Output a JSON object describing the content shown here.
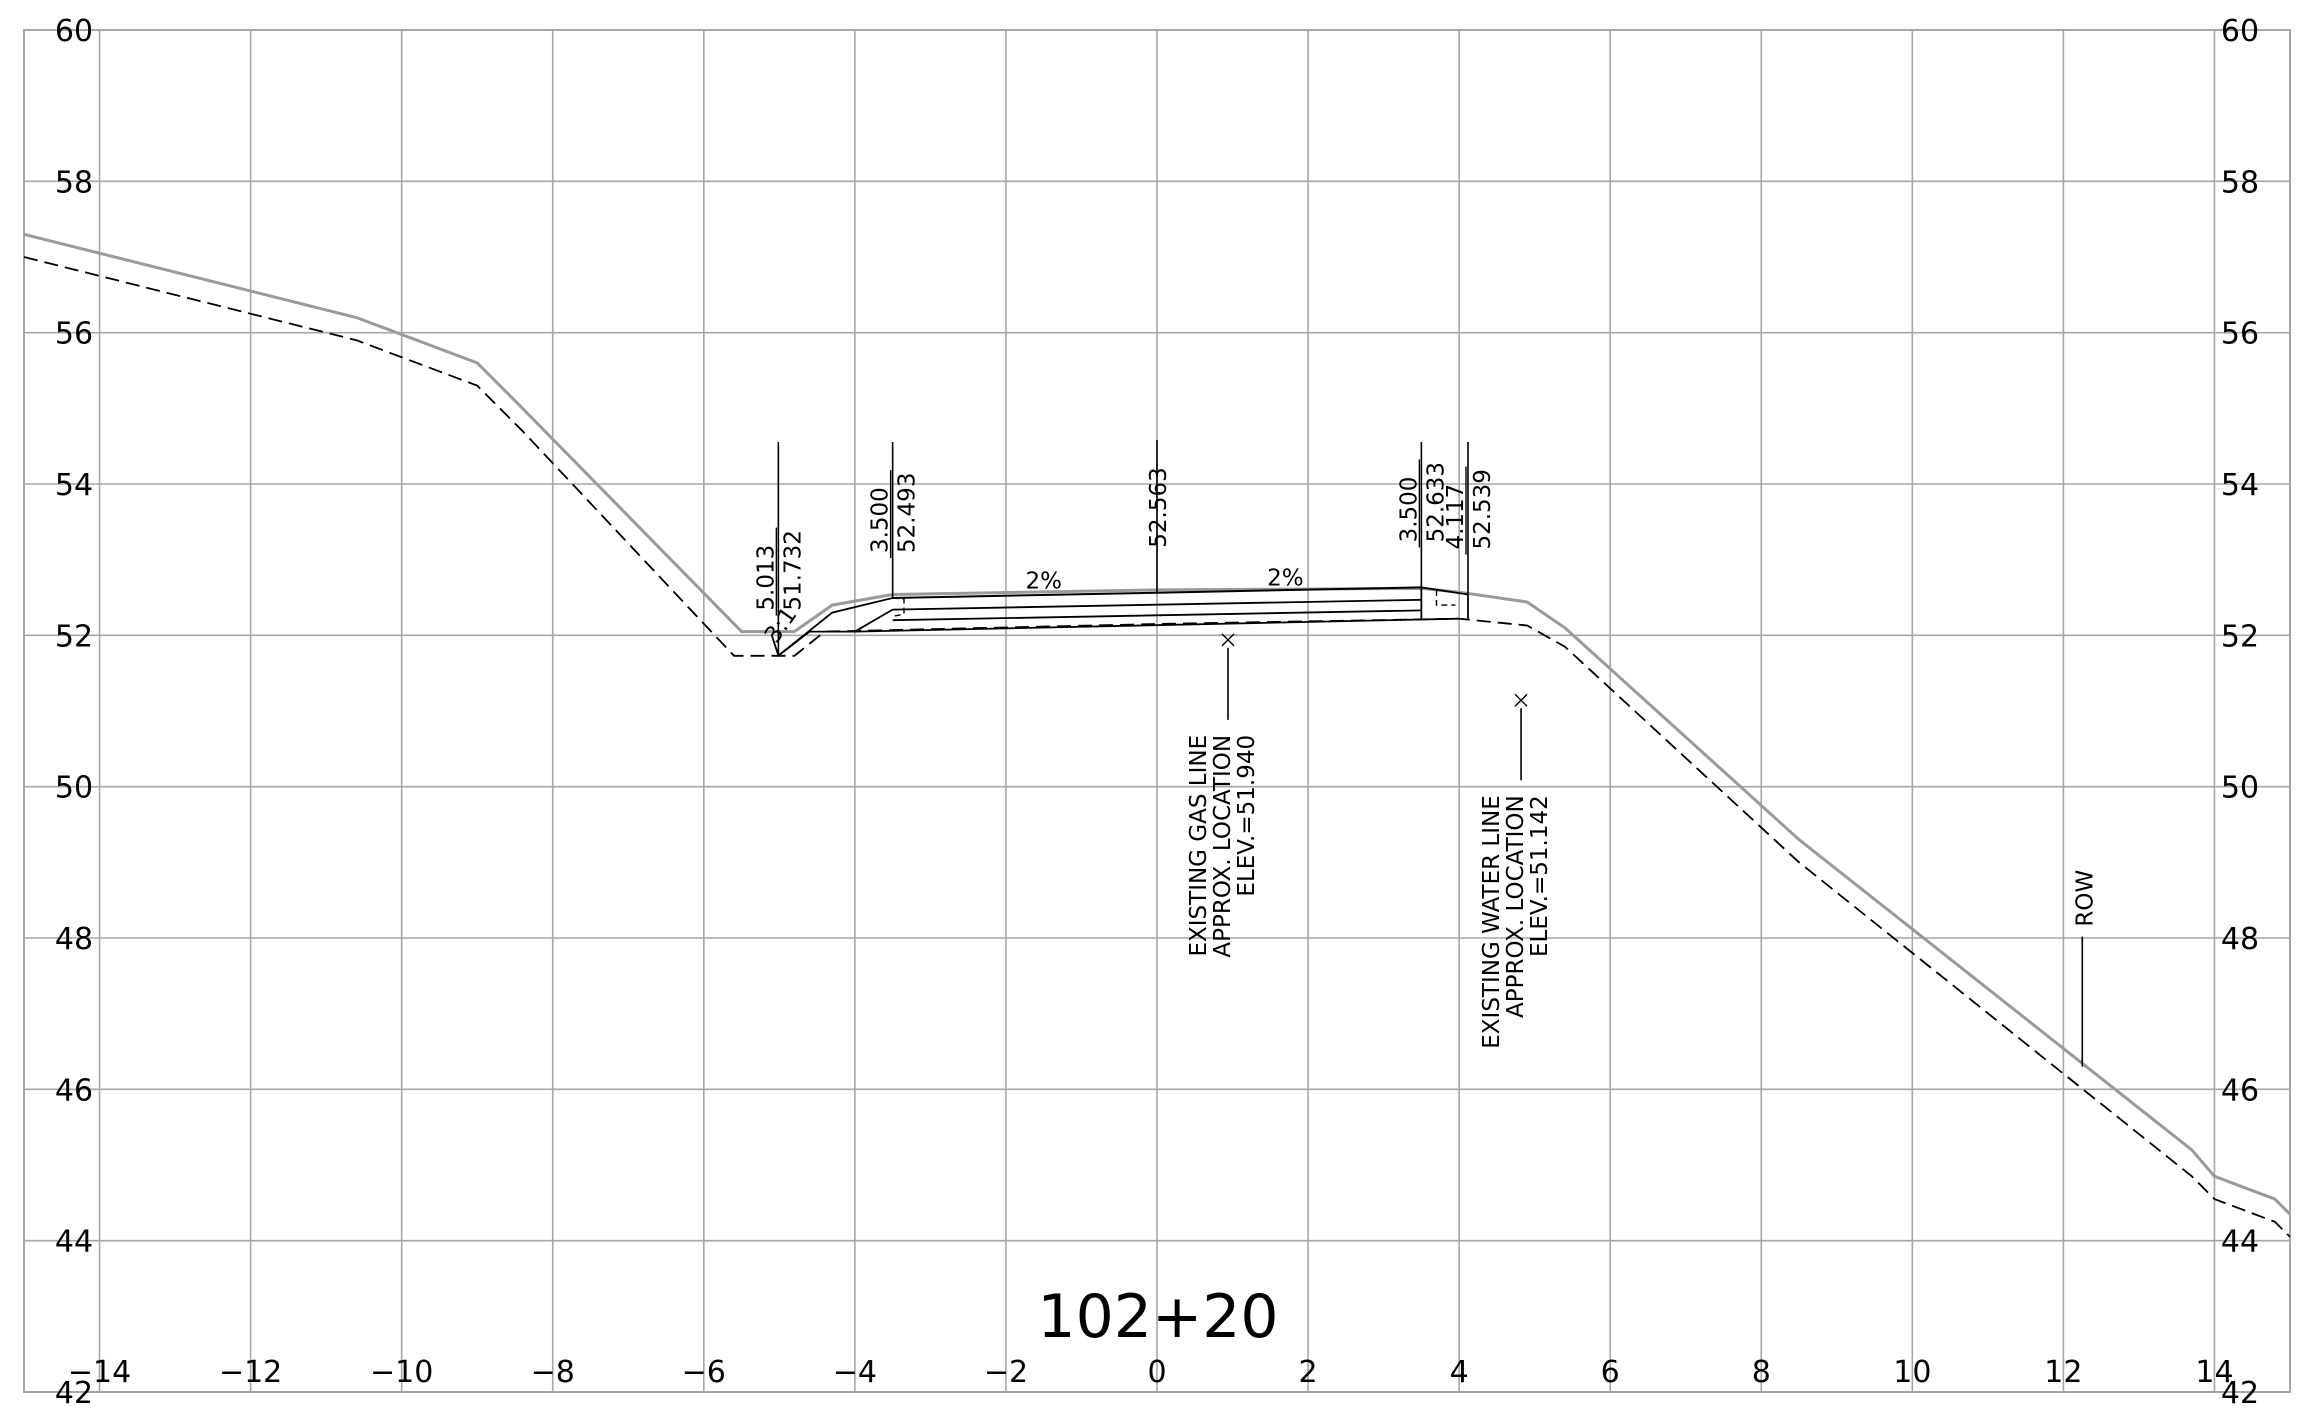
{
  "drawing": {
    "station": "102+20",
    "ground_color": "#9a9a9a",
    "grid_color": "#a6a6a6",
    "ink_color": "#000000"
  },
  "chart_data": {
    "type": "line",
    "xlim": [
      -15,
      15
    ],
    "ylim": [
      42,
      60
    ],
    "x_ticks": [
      -14,
      -12,
      -10,
      -8,
      -6,
      -4,
      -2,
      0,
      2,
      4,
      6,
      8,
      10,
      12,
      14
    ],
    "x_tick_labels": [
      "−14",
      "−12",
      "−10",
      "−8",
      "−6",
      "−4",
      "−2",
      "0",
      "2",
      "4",
      "6",
      "8",
      "10",
      "12",
      "14"
    ],
    "y_ticks": [
      42,
      44,
      46,
      48,
      50,
      52,
      54,
      56,
      58,
      60
    ],
    "y_tick_labels": [
      "42",
      "44",
      "46",
      "48",
      "50",
      "52",
      "54",
      "56",
      "58",
      "60"
    ],
    "grid": true,
    "series": [
      {
        "style": "solid-gray",
        "points": [
          [
            -15,
            57.3
          ],
          [
            -10.6,
            56.2
          ],
          [
            -9.0,
            55.6
          ],
          [
            -8.4,
            55.0
          ],
          [
            -5.5,
            52.05
          ],
          [
            -4.8,
            52.05
          ],
          [
            -4.3,
            52.4
          ],
          [
            -3.5,
            52.54
          ],
          [
            0,
            52.6
          ],
          [
            3.5,
            52.62
          ],
          [
            4.0,
            52.57
          ],
          [
            4.9,
            52.44
          ],
          [
            5.4,
            52.1
          ],
          [
            8.5,
            49.3
          ],
          [
            13.7,
            45.2
          ],
          [
            14.0,
            44.85
          ],
          [
            14.8,
            44.55
          ],
          [
            15.0,
            44.35
          ]
        ]
      },
      {
        "style": "dashed-black",
        "points": [
          [
            -15,
            57.0
          ],
          [
            -10.6,
            55.9
          ],
          [
            -9.0,
            55.3
          ],
          [
            -8.4,
            54.7
          ],
          [
            -5.6,
            51.73
          ],
          [
            -4.8,
            51.73
          ],
          [
            -4.4,
            52.05
          ],
          [
            0,
            52.15
          ],
          [
            4.0,
            52.22
          ],
          [
            4.9,
            52.13
          ],
          [
            5.4,
            51.85
          ],
          [
            8.5,
            49.0
          ],
          [
            13.7,
            44.85
          ],
          [
            14.0,
            44.55
          ],
          [
            14.8,
            44.25
          ],
          [
            15.0,
            44.05
          ]
        ]
      }
    ],
    "pavement": {
      "top": [
        [
          -3.5,
          52.493
        ],
        [
          0,
          52.563
        ],
        [
          3.5,
          52.633
        ]
      ],
      "base_lines": [
        [
          [
            -3.5,
            52.34
          ],
          [
            3.5,
            52.47
          ]
        ],
        [
          [
            -3.5,
            52.2
          ],
          [
            3.5,
            52.33
          ]
        ],
        [
          [
            -4.0,
            52.05
          ],
          [
            4.0,
            52.22
          ]
        ]
      ]
    },
    "callouts": [
      {
        "x": -5.013,
        "y": 51.732,
        "top": "5.013",
        "bottom": "51.732"
      },
      {
        "x": -3.5,
        "y": 52.493,
        "top": "3.500",
        "bottom": "52.493"
      },
      {
        "x": 0,
        "y": 52.563,
        "top": "",
        "bottom": "52.563"
      },
      {
        "x": 3.5,
        "y": 52.633,
        "top": "3.500",
        "bottom": "52.633"
      },
      {
        "x": 4.117,
        "y": 52.539,
        "top": "4.117",
        "bottom": "52.539"
      }
    ],
    "slopes": [
      {
        "x": -1.5,
        "y": 52.62,
        "label": "2%"
      },
      {
        "x": 1.7,
        "y": 52.66,
        "label": "2%"
      },
      {
        "x": -4.9,
        "y": 52.08,
        "label": "3:1"
      }
    ],
    "utilities": [
      {
        "x": 0.94,
        "y": 51.94,
        "lines": [
          "EXISTING GAS LINE",
          "APPROX. LOCATION",
          "ELEV.=51.940"
        ]
      },
      {
        "x": 4.82,
        "y": 51.142,
        "lines": [
          "EXISTING WATER LINE",
          "APPROX. LOCATION",
          "ELEV.=51.142"
        ]
      }
    ],
    "row_marker": {
      "x": 12.25,
      "y": 46.3,
      "label": "ROW"
    }
  }
}
